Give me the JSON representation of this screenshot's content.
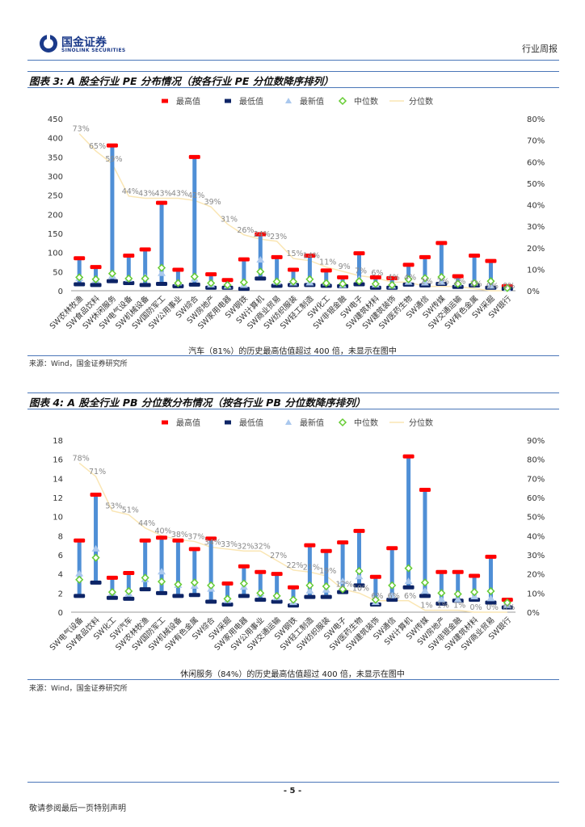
{
  "header": {
    "logo_cn": "国金证券",
    "logo_en": "SINOLINK SECURITIES",
    "report_type": "行业周报"
  },
  "colors": {
    "max": "#ff0000",
    "min": "#0d2466",
    "latest": "#aac8ee",
    "median": "#66cc33",
    "pct": "#fae6b4",
    "bar": "#4f8fd6",
    "rule": "#4a76b8"
  },
  "legend": {
    "max": "最高值",
    "min": "最低值",
    "latest": "最新值",
    "median": "中位数",
    "pct": "分位数"
  },
  "figure3": {
    "title": "图表 3: A 股全行业 PE 分布情况（按各行业 PE 分位数降序排列）",
    "note": "汽车（81%）的历史最高估值超过 400 倍，未显示在图中",
    "source": "来源：Wind，国金证券研究所"
  },
  "figure4": {
    "title": "图表 4: A 股全行业 PB 分位数分布情况（按各行业 PB 分位数降序排列）",
    "note": "休闲服务（84%）的历史最高估值超过 400 倍，未显示在图中",
    "source": "来源：Wind，国金证券研究所"
  },
  "footer": {
    "page": "- 5 -",
    "disclaimer": "敬请参阅最后一页特别声明"
  },
  "chart_data": [
    {
      "type": "bar",
      "title": "图表 3: A 股全行业 PE 分布情况（按各行业 PE 分位数降序排列）",
      "categories": [
        "SW农林牧渔",
        "SW食品饮料",
        "SW休闲服务",
        "SW电气设备",
        "SW机械设备",
        "SW国防军工",
        "SW公用事业",
        "SW综合",
        "SW房地产",
        "SW家用电器",
        "SW钢铁",
        "SW计算机",
        "SW商业贸易",
        "SW纺织服装",
        "SW轻工制造",
        "SW化工",
        "SW非银金融",
        "SW电子",
        "SW建筑材料",
        "SW建筑装饰",
        "SW医药生物",
        "SW通信",
        "SW传媒",
        "SW交通运输",
        "SW有色金属",
        "SW采掘",
        "SW银行"
      ],
      "ylim": [
        0,
        450
      ],
      "yticks": [
        0,
        50,
        100,
        150,
        200,
        250,
        300,
        350,
        400,
        450
      ],
      "y2lim": [
        0,
        0.8
      ],
      "y2ticks": [
        "0%",
        "10%",
        "20%",
        "30%",
        "40%",
        "50%",
        "60%",
        "70%",
        "80%"
      ],
      "series": [
        {
          "name": "最高值",
          "values": [
            85,
            62,
            380,
            92,
            108,
            230,
            55,
            350,
            43,
            28,
            82,
            148,
            88,
            55,
            92,
            53,
            35,
            98,
            35,
            33,
            68,
            88,
            125,
            38,
            92,
            78,
            12
          ]
        },
        {
          "name": "最低值",
          "values": [
            17,
            15,
            25,
            20,
            15,
            18,
            12,
            16,
            8,
            8,
            5,
            32,
            13,
            15,
            15,
            13,
            12,
            17,
            8,
            8,
            16,
            14,
            18,
            10,
            14,
            8,
            5
          ]
        },
        {
          "name": "最新值",
          "values": [
            32,
            27,
            38,
            30,
            35,
            45,
            20,
            30,
            15,
            12,
            14,
            80,
            22,
            20,
            20,
            20,
            14,
            30,
            15,
            12,
            22,
            20,
            22,
            18,
            20,
            12,
            5
          ]
        },
        {
          "name": "中位数",
          "values": [
            35,
            30,
            45,
            32,
            32,
            60,
            20,
            37,
            20,
            15,
            22,
            50,
            24,
            24,
            30,
            20,
            18,
            25,
            18,
            15,
            30,
            33,
            36,
            18,
            20,
            25,
            7
          ]
        },
        {
          "name": "分位数",
          "values": [
            0.73,
            0.65,
            0.59,
            0.44,
            0.43,
            0.43,
            0.43,
            0.42,
            0.39,
            0.31,
            0.26,
            0.24,
            0.23,
            0.15,
            0.14,
            0.11,
            0.09,
            0.07,
            0.06,
            0.04,
            0.04,
            0.02,
            0.02,
            0.02,
            0.01,
            0.0,
            0.0
          ]
        }
      ],
      "pct_labels": [
        "73%",
        "65%",
        "59%",
        "44%",
        "43%",
        "43%",
        "43%",
        "42%",
        "39%",
        "31%",
        "26%",
        "24%",
        "23%",
        "15%",
        "14%",
        "11%",
        "9%",
        "7%",
        "6%",
        "4%",
        "4%",
        "2%",
        "2%",
        "2%",
        "1%",
        "0%",
        "0%"
      ]
    },
    {
      "type": "bar",
      "title": "图表 4: A 股全行业 PB 分位数分布情况（按各行业 PB 分位数降序排列）",
      "categories": [
        "SW电气设备",
        "SW食品饮料",
        "SW化工",
        "SW汽车",
        "SW农林牧渔",
        "SW国防军工",
        "SW机械设备",
        "SW有色金属",
        "SW综合",
        "SW采掘",
        "SW家用电器",
        "SW公用事业",
        "SW交通运输",
        "SW钢铁",
        "SW轻工制造",
        "SW纺织服装",
        "SW电子",
        "SW医药生物",
        "SW建筑装饰",
        "SW通信",
        "SW计算机",
        "SW传媒",
        "SW房地产",
        "SW非银金融",
        "SW建筑材料",
        "SW商业贸易",
        "SW银行"
      ],
      "ylim": [
        0,
        18
      ],
      "yticks": [
        0,
        2,
        4,
        6,
        8,
        10,
        12,
        14,
        16,
        18
      ],
      "y2lim": [
        0,
        0.9
      ],
      "y2ticks": [
        "0%",
        "10%",
        "20%",
        "30%",
        "40%",
        "50%",
        "60%",
        "70%",
        "80%",
        "90%"
      ],
      "series": [
        {
          "name": "最高值",
          "values": [
            7.5,
            12.3,
            3.6,
            4.1,
            7.5,
            7.8,
            7.5,
            6.6,
            7.7,
            3.0,
            4.8,
            4.2,
            4.0,
            2.6,
            7.0,
            6.4,
            7.3,
            8.5,
            3.7,
            6.7,
            16.3,
            12.8,
            4.2,
            4.2,
            3.8,
            5.8,
            1.3
          ]
        },
        {
          "name": "最低值",
          "values": [
            1.7,
            3.1,
            1.5,
            1.4,
            2.4,
            2.0,
            1.7,
            1.8,
            1.1,
            0.8,
            1.7,
            1.3,
            1.1,
            0.7,
            1.6,
            1.6,
            2.1,
            2.8,
            0.8,
            1.3,
            2.6,
            1.7,
            0.9,
            1.2,
            1.3,
            1.0,
            0.5
          ]
        },
        {
          "name": "最新值",
          "values": [
            4.0,
            6.6,
            2.0,
            1.9,
            3.4,
            4.2,
            2.8,
            2.7,
            2.4,
            1.2,
            2.6,
            1.9,
            1.5,
            1.0,
            2.2,
            2.3,
            3.2,
            3.7,
            1.0,
            1.7,
            3.2,
            2.2,
            1.3,
            1.3,
            1.6,
            1.4,
            0.7
          ]
        },
        {
          "name": "中位数",
          "values": [
            3.4,
            5.7,
            2.1,
            2.2,
            3.6,
            3.2,
            2.9,
            3.1,
            2.8,
            1.4,
            3.0,
            2.0,
            1.7,
            1.3,
            2.8,
            2.7,
            2.4,
            4.3,
            1.3,
            2.8,
            4.6,
            3.1,
            2.0,
            1.9,
            2.1,
            2.2,
            1.0
          ]
        },
        {
          "name": "分位数",
          "values": [
            0.78,
            0.71,
            0.53,
            0.51,
            0.44,
            0.4,
            0.38,
            0.37,
            0.34,
            0.33,
            0.32,
            0.32,
            0.27,
            0.22,
            0.21,
            0.19,
            0.12,
            0.1,
            0.06,
            0.06,
            0.06,
            0.01,
            0.01,
            0.01,
            0.0,
            0.0,
            0.0
          ]
        }
      ],
      "pct_labels": [
        "78%",
        "71%",
        "53%",
        "51%",
        "44%",
        "40%",
        "38%",
        "37%",
        "34%",
        "33%",
        "32%",
        "32%",
        "27%",
        "22%",
        "21%",
        "19%",
        "12%",
        "10%",
        "6%",
        "6%",
        "6%",
        "1%",
        "1%",
        "1%",
        "0%",
        "0%",
        "0%"
      ]
    }
  ]
}
